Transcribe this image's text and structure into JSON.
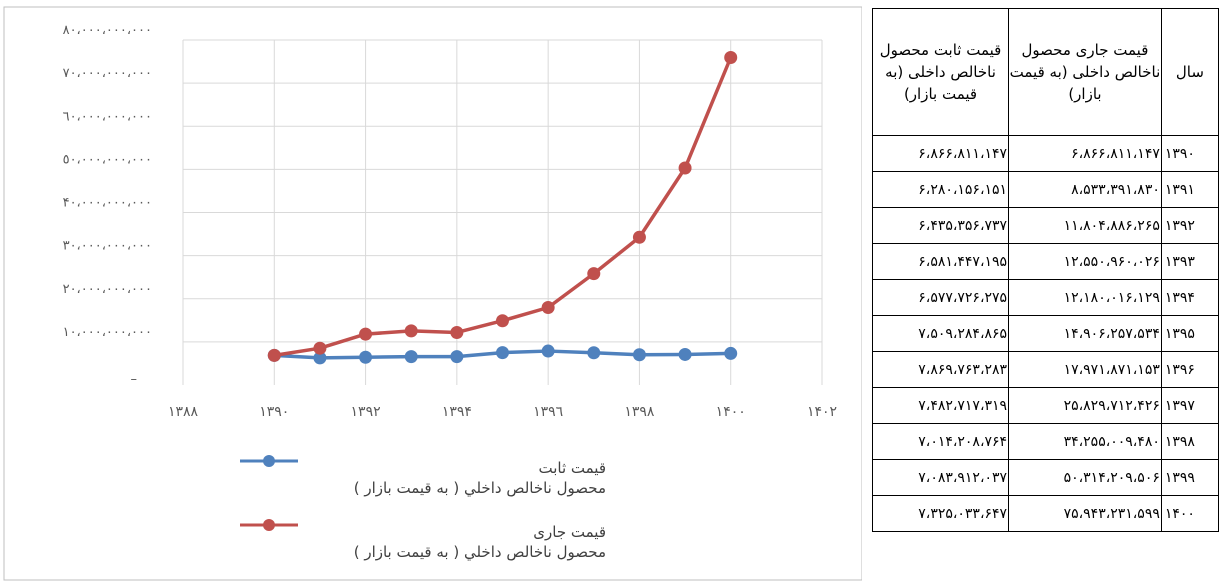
{
  "chart_data": {
    "type": "line",
    "y_tick_labels": [
      "٨٠،٠٠٠،٠٠٠،٠٠٠",
      "٧٠،٠٠٠،٠٠٠،٠٠٠",
      "٦٠،٠٠٠،٠٠٠،٠٠٠",
      "٥٠،٠٠٠،٠٠٠،٠٠٠",
      "۴٠،٠٠٠،٠٠٠،٠٠٠",
      "٣٠،٠٠٠،٠٠٠،٠٠٠",
      "٢٠،٠٠٠،٠٠٠،٠٠٠",
      "١٠،٠٠٠،٠٠٠،٠٠٠",
      "–"
    ],
    "y_tick_values": [
      80000000000,
      70000000000,
      60000000000,
      50000000000,
      40000000000,
      30000000000,
      20000000000,
      10000000000,
      0
    ],
    "x_tick_labels": [
      "١٣٨٨",
      "١٣٩٠",
      "١٣٩٢",
      "١٣٩۴",
      "١٣٩٦",
      "١٣٩٨",
      "١۴٠٠",
      "١۴٠٢"
    ],
    "x_tick_values": [
      1388,
      1390,
      1392,
      1394,
      1396,
      1398,
      1400,
      1402
    ],
    "xlim": [
      1388,
      1402
    ],
    "ylim": [
      0,
      80000000000
    ],
    "grid": true,
    "legend_position": "bottom-left",
    "x": [
      1390,
      1391,
      1392,
      1393,
      1394,
      1395,
      1396,
      1397,
      1398,
      1399,
      1400
    ],
    "series": [
      {
        "name_line1": "قیمت ثابت",
        "name_line2": "محصول ناخالص داخلي ( به قیمت بازار )",
        "color": "#4f81bd",
        "values": [
          6866811147,
          6280156151,
          6435356737,
          6581447195,
          6577726275,
          7509284865,
          7869763283,
          7482717319,
          7014208764,
          7083912037,
          7325033647
        ]
      },
      {
        "name_line1": "قیمت جاری",
        "name_line2": "محصول ناخالص داخلي ( به قیمت بازار )",
        "color": "#c0504d",
        "values": [
          6866811147,
          8533391830,
          11804886265,
          12550960026,
          12180016129,
          14906257534,
          17971871153,
          25829712426,
          34255009480,
          50314209506,
          75943231599
        ]
      }
    ]
  },
  "table": {
    "headers": {
      "constant": "قیمت ثابت محصول ناخالص داخلی (به قیمت بازار)",
      "current": "قیمت جاری محصول ناخالص داخلی (به قیمت بازار)",
      "year": "سال"
    },
    "rows": [
      {
        "constant": "۶،۸۶۶،۸۱۱،۱۴۷",
        "current": "۶،۸۶۶،۸۱۱،۱۴۷",
        "year": "۱۳۹۰"
      },
      {
        "constant": "۶،۲۸۰،۱۵۶،۱۵۱",
        "current": "۸،۵۳۳،۳۹۱،۸۳۰",
        "year": "۱۳۹۱"
      },
      {
        "constant": "۶،۴۳۵،۳۵۶،۷۳۷",
        "current": "۱۱،۸۰۴،۸۸۶،۲۶۵",
        "year": "۱۳۹۲"
      },
      {
        "constant": "۶،۵۸۱،۴۴۷،۱۹۵",
        "current": "۱۲،۵۵۰،۹۶۰،۰۲۶",
        "year": "۱۳۹۳"
      },
      {
        "constant": "۶،۵۷۷،۷۲۶،۲۷۵",
        "current": "۱۲،۱۸۰،۰۱۶،۱۲۹",
        "year": "۱۳۹۴"
      },
      {
        "constant": "۷،۵۰۹،۲۸۴،۸۶۵",
        "current": "۱۴،۹۰۶،۲۵۷،۵۳۴",
        "year": "۱۳۹۵"
      },
      {
        "constant": "۷،۸۶۹،۷۶۳،۲۸۳",
        "current": "۱۷،۹۷۱،۸۷۱،۱۵۳",
        "year": "۱۳۹۶"
      },
      {
        "constant": "۷،۴۸۲،۷۱۷،۳۱۹",
        "current": "۲۵،۸۲۹،۷۱۲،۴۲۶",
        "year": "۱۳۹۷"
      },
      {
        "constant": "۷،۰۱۴،۲۰۸،۷۶۴",
        "current": "۳۴،۲۵۵،۰۰۹،۴۸۰",
        "year": "۱۳۹۸"
      },
      {
        "constant": "۷،۰۸۳،۹۱۲،۰۳۷",
        "current": "۵۰،۳۱۴،۲۰۹،۵۰۶",
        "year": "۱۳۹۹"
      },
      {
        "constant": "۷،۳۲۵،۰۳۳،۶۴۷",
        "current": "۷۵،۹۴۳،۲۳۱،۵۹۹",
        "year": "۱۴۰۰"
      }
    ]
  }
}
